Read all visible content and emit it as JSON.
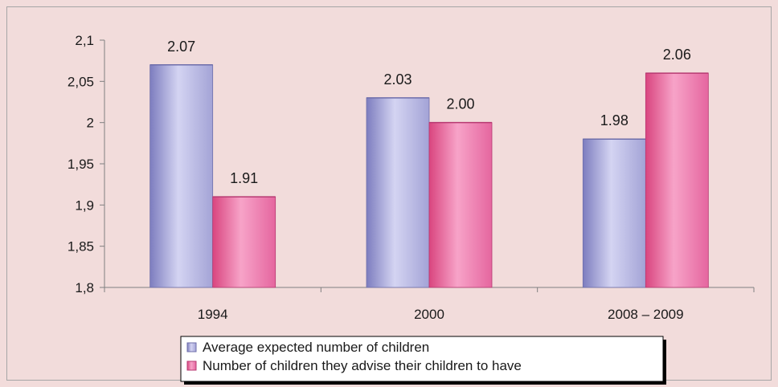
{
  "chart_data": {
    "type": "bar",
    "title": "",
    "xlabel": "",
    "ylabel": "",
    "categories": [
      "1994",
      "2000",
      "2008 – 2009"
    ],
    "ylim": [
      1.8,
      2.1
    ],
    "ytick_values": [
      1.8,
      1.85,
      1.9,
      1.95,
      2,
      2.05,
      2.1
    ],
    "ytick_labels": [
      "1,8",
      "1,85",
      "1,9",
      "1,95",
      "2",
      "2,05",
      "2,1"
    ],
    "grid": false,
    "legend_position": "bottom",
    "series": [
      {
        "name": "Average expected number of children",
        "values": [
          2.07,
          2.03,
          1.98
        ],
        "labels": [
          "2.07",
          "2.03",
          "1.98"
        ],
        "color": "#b7b7e0"
      },
      {
        "name": "Number of children they advise their children to have",
        "values": [
          1.91,
          2.0,
          2.06
        ],
        "labels": [
          "1.91",
          "2.00",
          "2.06"
        ],
        "color": "#e85fa0"
      }
    ]
  }
}
